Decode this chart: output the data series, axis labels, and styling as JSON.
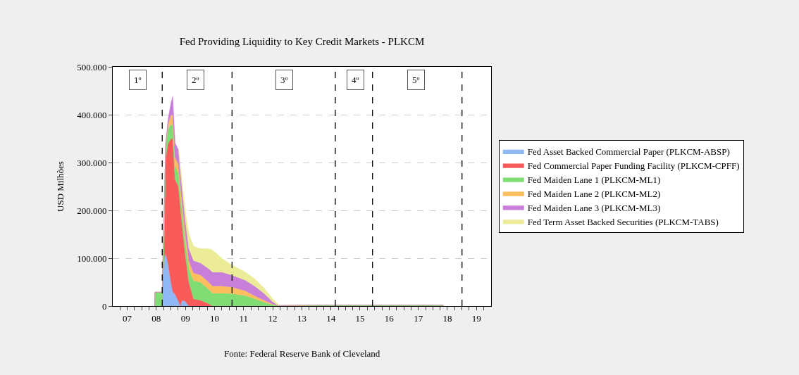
{
  "chart_data": {
    "type": "area",
    "stacked": true,
    "title": "Fed Providing Liquidity to Key Credit Markets - PLKCM",
    "ylabel": "USD Milhões",
    "x": [
      "2008-06-10",
      "2008-06-14",
      "2008-09-13",
      "2008-09-20",
      "2008-10-04",
      "2008-10-27",
      "2008-11-25",
      "2009-01-01",
      "2009-01-23",
      "2009-02-21",
      "2009-04-05",
      "2009-04-27",
      "2009-05-19",
      "2009-07-01",
      "2009-08-14",
      "2009-10-12",
      "2010-01-08",
      "2010-04-20",
      "2010-06-07",
      "2010-10-01",
      "2011-01-30",
      "2011-07-24",
      "2011-11-24",
      "2012-03-17",
      "2012-07-01",
      "2012-09-13",
      "2013-07-01",
      "2014-01-01",
      "2018-05-08",
      "2018-05-12"
    ],
    "series": [
      {
        "name": "Fed Asset Backed Commercial Paper (PLKCM-ABSP)",
        "color": "#8fb8f5",
        "values": [
          0,
          0,
          0,
          60000,
          100000,
          110000,
          90000,
          50000,
          30000,
          25000,
          10000,
          0,
          12000,
          10000,
          0,
          0,
          0,
          0,
          0,
          0,
          0,
          0,
          0,
          0,
          0,
          0,
          0,
          0,
          0,
          0
        ]
      },
      {
        "name": "Fed Commercial Paper Funding Facility (PLKCM-CPFF)",
        "color": "#fa5a5a",
        "values": [
          0,
          0,
          0,
          0,
          0,
          200000,
          250000,
          300000,
          320000,
          240000,
          240000,
          210000,
          160000,
          95000,
          50000,
          15000,
          12000,
          5000,
          0,
          0,
          0,
          0,
          0,
          0,
          0,
          0,
          0,
          0,
          0,
          0
        ]
      },
      {
        "name": "Fed Maiden Lane 1 (PLKCM-ML1)",
        "color": "#80dd74",
        "values": [
          0,
          29000,
          29000,
          30000,
          74000,
          30000,
          30000,
          30000,
          29000,
          28000,
          28000,
          28000,
          28000,
          28000,
          28000,
          38000,
          38000,
          30000,
          27000,
          27000,
          26000,
          22000,
          15000,
          8000,
          3000,
          1000,
          1000,
          2000,
          2000,
          0
        ]
      },
      {
        "name": "Fed Maiden Lane 2 (PLKCM-ML2)",
        "color": "#fdbf5e",
        "values": [
          0,
          0,
          0,
          0,
          0,
          0,
          10000,
          20000,
          20000,
          18000,
          18000,
          18000,
          17000,
          17000,
          16000,
          16000,
          15000,
          15000,
          15000,
          15000,
          14000,
          10000,
          6000,
          4000,
          1000,
          0,
          1000,
          0,
          0,
          0
        ]
      },
      {
        "name": "Fed Maiden Lane 3 (PLKCM-ML3)",
        "color": "#c77fd9",
        "values": [
          0,
          0,
          0,
          0,
          0,
          0,
          10000,
          25000,
          39000,
          30000,
          30000,
          30000,
          30000,
          28000,
          26000,
          26000,
          25000,
          28000,
          29000,
          29000,
          25000,
          22000,
          20000,
          14000,
          5000,
          0,
          0,
          0,
          0,
          0
        ]
      },
      {
        "name": "Fed Term Asset Backed Securities (PLKCM-TABS)",
        "color": "#ebeb98",
        "values": [
          null,
          null,
          null,
          null,
          null,
          null,
          null,
          null,
          null,
          null,
          5000,
          10000,
          15000,
          20000,
          30000,
          30000,
          30000,
          42000,
          46000,
          29000,
          21000,
          17000,
          15000,
          11000,
          6000,
          2000,
          null,
          null,
          null,
          null
        ]
      }
    ],
    "xlim": [
      "2007-01-01",
      "2020-01-01"
    ],
    "xticks": [
      {
        "value": "2007-07-01",
        "label": "07"
      },
      {
        "value": "2008-07-01",
        "label": "08"
      },
      {
        "value": "2009-07-01",
        "label": "09"
      },
      {
        "value": "2010-07-01",
        "label": "10"
      },
      {
        "value": "2011-07-01",
        "label": "11"
      },
      {
        "value": "2012-07-01",
        "label": "12"
      },
      {
        "value": "2013-07-01",
        "label": "13"
      },
      {
        "value": "2014-07-01",
        "label": "14"
      },
      {
        "value": "2015-07-01",
        "label": "15"
      },
      {
        "value": "2016-07-01",
        "label": "16"
      },
      {
        "value": "2017-07-01",
        "label": "17"
      },
      {
        "value": "2018-07-01",
        "label": "18"
      },
      {
        "value": "2019-07-01",
        "label": "19"
      },
      {
        "value": "2007-04-01",
        "label": null
      },
      {
        "value": "2007-10-01",
        "label": null
      },
      {
        "value": "2008-01-01",
        "label": null
      },
      {
        "value": "2008-04-01",
        "label": null
      },
      {
        "value": "2008-10-01",
        "label": null
      },
      {
        "value": "2009-01-01",
        "label": null
      },
      {
        "value": "2009-04-01",
        "label": null
      },
      {
        "value": "2009-10-01",
        "label": null
      },
      {
        "value": "2010-01-01",
        "label": null
      },
      {
        "value": "2010-04-01",
        "label": null
      },
      {
        "value": "2010-10-01",
        "label": null
      },
      {
        "value": "2011-01-01",
        "label": null
      },
      {
        "value": "2011-04-01",
        "label": null
      },
      {
        "value": "2011-10-01",
        "label": null
      },
      {
        "value": "2012-01-01",
        "label": null
      },
      {
        "value": "2012-04-01",
        "label": null
      },
      {
        "value": "2012-10-01",
        "label": null
      },
      {
        "value": "2013-01-01",
        "label": null
      },
      {
        "value": "2013-04-01",
        "label": null
      },
      {
        "value": "2013-10-01",
        "label": null
      },
      {
        "value": "2014-01-01",
        "label": null
      },
      {
        "value": "2014-04-01",
        "label": null
      },
      {
        "value": "2014-10-01",
        "label": null
      },
      {
        "value": "2015-01-01",
        "label": null
      },
      {
        "value": "2015-04-01",
        "label": null
      },
      {
        "value": "2015-10-01",
        "label": null
      },
      {
        "value": "2016-01-01",
        "label": null
      },
      {
        "value": "2016-04-01",
        "label": null
      },
      {
        "value": "2016-10-01",
        "label": null
      },
      {
        "value": "2017-01-01",
        "label": null
      },
      {
        "value": "2017-04-01",
        "label": null
      },
      {
        "value": "2017-10-01",
        "label": null
      },
      {
        "value": "2018-01-01",
        "label": null
      },
      {
        "value": "2018-04-01",
        "label": null
      },
      {
        "value": "2018-10-01",
        "label": null
      },
      {
        "value": "2019-01-01",
        "label": null
      },
      {
        "value": "2019-04-01",
        "label": null
      },
      {
        "value": "2019-10-01",
        "label": null
      }
    ],
    "ylim": [
      0,
      500000
    ],
    "yticks": [
      0,
      {
        "value": 100000,
        "label": "100.000"
      },
      {
        "value": 200000,
        "label": "200.000"
      },
      {
        "value": 300000,
        "label": "300.000"
      },
      {
        "value": 400000,
        "label": "400.000"
      },
      {
        "value": 500000,
        "label": "500.000"
      }
    ],
    "grid": "y",
    "legend": "right",
    "ref_lines": [
      {
        "axis": "x",
        "value": "2008-09-13",
        "color": "#000000",
        "line_style": "dashed"
      },
      {
        "axis": "x",
        "value": "2011-02-06",
        "color": "#000000",
        "line_style": "dashed"
      },
      {
        "axis": "x",
        "value": "2014-08-25",
        "color": "#000000",
        "line_style": "dashed"
      },
      {
        "axis": "x",
        "value": "2015-12-05",
        "color": "#000000",
        "line_style": "dashed"
      },
      {
        "axis": "x",
        "value": "2019-01-01",
        "color": "#000000",
        "line_style": "dashed"
      }
    ],
    "annotations": [
      {
        "text": "1º",
        "x": "2007-11-13",
        "y": 473000
      },
      {
        "text": "2º",
        "x": "2009-11-03",
        "y": 473000
      },
      {
        "text": "3º",
        "x": "2012-11-24",
        "y": 473000
      },
      {
        "text": "4º",
        "x": "2015-05-05",
        "y": 473000
      },
      {
        "text": "5º",
        "x": "2017-06-03",
        "y": 473000
      },
      "Fonte: Federal Reserve Bank of Cleveland"
    ]
  }
}
